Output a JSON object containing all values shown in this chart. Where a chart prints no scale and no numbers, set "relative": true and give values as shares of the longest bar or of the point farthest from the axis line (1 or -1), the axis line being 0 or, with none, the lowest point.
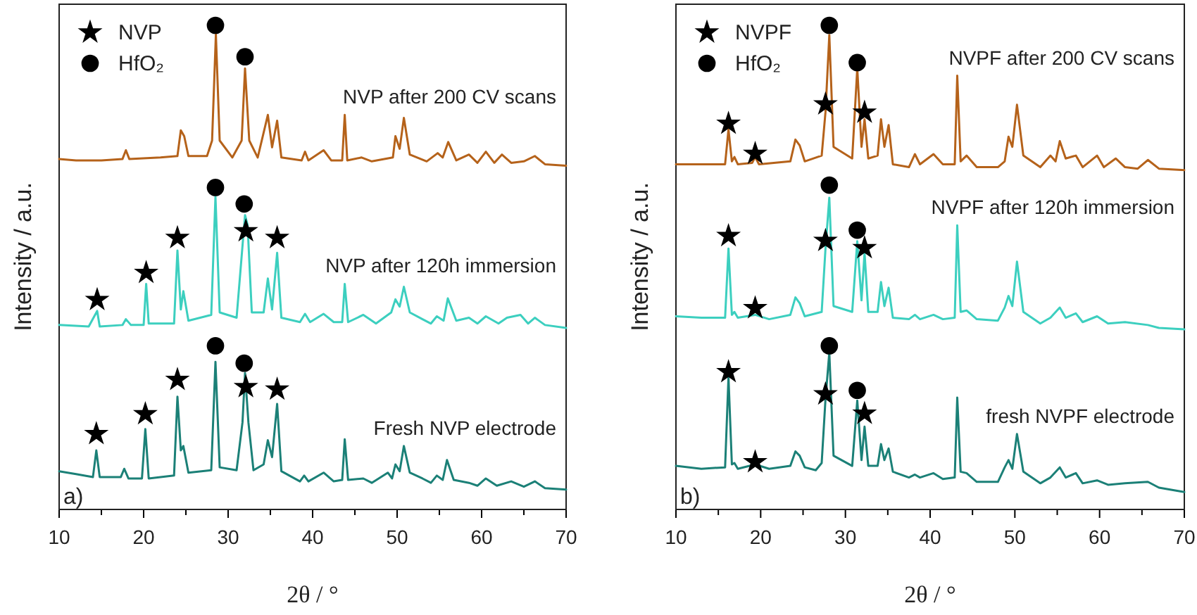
{
  "chart_data": [
    {
      "type": "line",
      "relative": true,
      "xlim": [
        10,
        70
      ],
      "xticks": [
        10,
        {
          "value": 15,
          "label": null
        },
        20,
        {
          "value": 25,
          "label": null
        },
        30,
        {
          "value": 35,
          "label": null
        },
        40,
        {
          "value": 45,
          "label": null
        },
        50,
        {
          "value": 55,
          "label": null
        },
        60,
        {
          "value": 65,
          "label": null
        },
        70
      ],
      "xlabel": "2θ / °",
      "ylabel": "Intensity / a.u.",
      "legend": "top left",
      "annotations": [
        "a)"
      ],
      "series": [
        {
          "name": "NVP after 200 CV scans",
          "color": "#b5621a",
          "x": [
            10,
            12,
            15,
            17.5,
            17.9,
            18.3,
            22,
            24.0,
            24.4,
            24.8,
            25.3,
            27.5,
            28.1,
            28.55,
            29.0,
            30.5,
            31.6,
            32.0,
            32.5,
            33.5,
            34.7,
            35.2,
            35.8,
            36.3,
            38.7,
            39.1,
            39.5,
            41.3,
            42.2,
            43.5,
            43.8,
            44.1,
            45.8,
            47,
            49.5,
            49.8,
            50.3,
            50.8,
            51.5,
            53.5,
            54.8,
            55.4,
            56.05,
            57,
            58.5,
            59.5,
            60.5,
            61.5,
            62.4,
            63.5,
            65,
            66.3,
            67.5,
            70
          ],
          "values": [
            0.724,
            0.721,
            0.721,
            0.724,
            0.742,
            0.724,
            0.727,
            0.73,
            0.783,
            0.771,
            0.73,
            0.73,
            0.762,
            0.981,
            0.762,
            0.727,
            0.762,
            0.911,
            0.762,
            0.727,
            0.815,
            0.748,
            0.803,
            0.727,
            0.721,
            0.739,
            0.721,
            0.742,
            0.721,
            0.721,
            0.815,
            0.721,
            0.727,
            0.719,
            0.727,
            0.771,
            0.745,
            0.809,
            0.733,
            0.719,
            0.736,
            0.727,
            0.759,
            0.721,
            0.733,
            0.716,
            0.739,
            0.716,
            0.733,
            0.716,
            0.719,
            0.73,
            0.713,
            0.71
          ]
        },
        {
          "name": "NVP after 120h immersion",
          "color": "#3ccfbf",
          "x": [
            10,
            13.5,
            14.5,
            14.8,
            17.5,
            17.9,
            18.5,
            20.0,
            20.3,
            20.6,
            23.6,
            24.0,
            24.4,
            24.7,
            25.3,
            28.0,
            28.5,
            29.0,
            31.0,
            32.0,
            32.3,
            32.8,
            34.2,
            34.7,
            35.2,
            35.8,
            36.3,
            38.5,
            39.1,
            39.7,
            41.3,
            42.5,
            43.5,
            43.8,
            44.2,
            46.0,
            47.5,
            49.3,
            49.8,
            50.3,
            50.8,
            51.5,
            53.0,
            54.0,
            54.7,
            55.5,
            56.0,
            57,
            58.5,
            59.5,
            60.5,
            62,
            63,
            64.6,
            65.5,
            66.3,
            67.5,
            70
          ],
          "values": [
            0.381,
            0.378,
            0.41,
            0.378,
            0.381,
            0.393,
            0.381,
            0.381,
            0.466,
            0.384,
            0.384,
            0.535,
            0.413,
            0.451,
            0.39,
            0.402,
            0.646,
            0.407,
            0.396,
            0.608,
            0.588,
            0.407,
            0.407,
            0.477,
            0.413,
            0.53,
            0.396,
            0.387,
            0.404,
            0.387,
            0.404,
            0.387,
            0.387,
            0.466,
            0.387,
            0.402,
            0.384,
            0.407,
            0.434,
            0.419,
            0.46,
            0.407,
            0.393,
            0.384,
            0.399,
            0.39,
            0.436,
            0.39,
            0.396,
            0.384,
            0.399,
            0.384,
            0.396,
            0.402,
            0.384,
            0.396,
            0.381,
            0.375
          ]
        },
        {
          "name": "Fresh NVP electrode",
          "color": "#1b8077",
          "x": [
            10,
            12,
            14.0,
            14.4,
            14.8,
            17.3,
            17.7,
            18.2,
            19.8,
            20.2,
            20.6,
            23.6,
            24.0,
            24.4,
            24.7,
            25.3,
            28.0,
            28.5,
            29.0,
            31.0,
            31.7,
            32.0,
            32.4,
            33.0,
            34.2,
            34.7,
            35.2,
            35.8,
            36.3,
            38.5,
            39.0,
            39.5,
            41.3,
            42.5,
            43.5,
            43.8,
            44.2,
            46.0,
            47,
            48.9,
            49.4,
            49.8,
            50.3,
            50.8,
            51.5,
            53.0,
            54.0,
            54.7,
            55.4,
            55.9,
            56.7,
            58.5,
            59.5,
            60.5,
            61.8,
            63.5,
            65,
            66.3,
            67.5,
            70
          ],
          "values": [
            0.079,
            0.073,
            0.067,
            0.122,
            0.067,
            0.067,
            0.084,
            0.064,
            0.064,
            0.166,
            0.064,
            0.07,
            0.233,
            0.122,
            0.131,
            0.076,
            0.081,
            0.305,
            0.087,
            0.081,
            0.18,
            0.282,
            0.18,
            0.081,
            0.093,
            0.143,
            0.108,
            0.218,
            0.079,
            0.058,
            0.07,
            0.058,
            0.076,
            0.058,
            0.061,
            0.145,
            0.061,
            0.064,
            0.055,
            0.076,
            0.064,
            0.093,
            0.079,
            0.131,
            0.076,
            0.064,
            0.055,
            0.07,
            0.061,
            0.102,
            0.061,
            0.055,
            0.049,
            0.064,
            0.049,
            0.058,
            0.047,
            0.058,
            0.044,
            0.041
          ]
        },
        {
          "name": "NVP",
          "type": "scatter",
          "marker": "star",
          "color": "#000000",
          "x": [
            14.5,
            20.3,
            24.0,
            32.1,
            35.8,
            14.4,
            20.2,
            24.0,
            32.1,
            35.8
          ],
          "values": [
            0.433,
            0.489,
            0.561,
            0.575,
            0.561,
            0.156,
            0.197,
            0.268,
            0.253,
            0.248
          ]
        },
        {
          "name": "HfO₂",
          "type": "scatter",
          "marker": "circle",
          "color": "#000000",
          "x": [
            28.5,
            32.0,
            28.5,
            31.9,
            28.5,
            31.9
          ],
          "values": [
            1.0,
            0.935,
            0.665,
            0.631,
            0.338,
            0.302
          ]
        }
      ]
    },
    {
      "type": "line",
      "relative": true,
      "xlim": [
        10,
        70
      ],
      "xticks": [
        10,
        {
          "value": 15,
          "label": null
        },
        20,
        {
          "value": 25,
          "label": null
        },
        30,
        {
          "value": 35,
          "label": null
        },
        40,
        {
          "value": 45,
          "label": null
        },
        50,
        {
          "value": 55,
          "label": null
        },
        60,
        {
          "value": 65,
          "label": null
        },
        70
      ],
      "xlabel": "2θ / °",
      "ylabel": "Intensity / a.u.",
      "legend": "top left",
      "annotations": [
        "b)"
      ],
      "series": [
        {
          "name": "NVPF after 200 CV scans",
          "color": "#b5621a",
          "x": [
            10,
            13,
            15.8,
            16.2,
            16.6,
            16.9,
            17.3,
            19.0,
            19.35,
            19.8,
            23.5,
            24.1,
            24.6,
            25.2,
            27.2,
            27.65,
            28.1,
            28.6,
            30.8,
            31.4,
            31.9,
            32.26,
            32.7,
            33.8,
            34.2,
            34.6,
            35.1,
            35.6,
            37.5,
            38.2,
            38.8,
            40.4,
            41.5,
            42.9,
            43.2,
            43.6,
            44.3,
            45.5,
            48,
            48.8,
            49.25,
            49.7,
            50.25,
            51,
            53,
            54.2,
            54.8,
            55.3,
            56,
            57.2,
            58,
            59.7,
            60.5,
            61.9,
            63,
            64.5,
            65.7,
            67,
            70
          ],
          "values": [
            0.713,
            0.713,
            0.713,
            0.785,
            0.719,
            0.728,
            0.713,
            0.716,
            0.728,
            0.713,
            0.719,
            0.764,
            0.752,
            0.719,
            0.731,
            0.821,
            0.98,
            0.749,
            0.725,
            0.911,
            0.749,
            0.806,
            0.725,
            0.731,
            0.806,
            0.749,
            0.794,
            0.713,
            0.707,
            0.734,
            0.713,
            0.734,
            0.713,
            0.713,
            0.896,
            0.719,
            0.731,
            0.707,
            0.707,
            0.719,
            0.77,
            0.749,
            0.836,
            0.731,
            0.707,
            0.731,
            0.719,
            0.761,
            0.725,
            0.731,
            0.707,
            0.731,
            0.707,
            0.725,
            0.707,
            0.704,
            0.722,
            0.704,
            0.701
          ]
        },
        {
          "name": "NVPF after 120h immersion",
          "color": "#3ccfbf",
          "x": [
            10,
            13,
            15.8,
            16.2,
            16.6,
            16.9,
            17.3,
            19.35,
            21,
            23.5,
            24.1,
            24.6,
            25.2,
            27.2,
            27.65,
            28.1,
            28.6,
            30.8,
            31.4,
            31.9,
            32.26,
            32.7,
            33.8,
            34.2,
            34.6,
            35.1,
            35.6,
            37.5,
            38.2,
            38.8,
            40.4,
            41.5,
            42.9,
            43.2,
            43.6,
            44.3,
            45.5,
            48,
            48.8,
            49.25,
            49.7,
            50.25,
            51,
            53,
            54.2,
            55.3,
            56,
            57.2,
            58,
            59.7,
            61,
            63,
            65.7,
            67,
            70
          ],
          "values": [
            0.399,
            0.396,
            0.396,
            0.539,
            0.402,
            0.408,
            0.396,
            0.402,
            0.393,
            0.402,
            0.438,
            0.426,
            0.399,
            0.408,
            0.539,
            0.644,
            0.42,
            0.408,
            0.554,
            0.432,
            0.53,
            0.408,
            0.408,
            0.47,
            0.42,
            0.458,
            0.396,
            0.393,
            0.402,
            0.393,
            0.402,
            0.393,
            0.396,
            0.587,
            0.408,
            0.411,
            0.393,
            0.39,
            0.417,
            0.441,
            0.42,
            0.512,
            0.408,
            0.384,
            0.396,
            0.417,
            0.396,
            0.405,
            0.387,
            0.399,
            0.384,
            0.387,
            0.381,
            0.375,
            0.372
          ]
        },
        {
          "name": "fresh NVPF electrode",
          "color": "#1b8077",
          "x": [
            10,
            13,
            15.8,
            16.2,
            16.6,
            16.9,
            17.3,
            19.35,
            21,
            23.5,
            24.1,
            24.6,
            25.2,
            26.5,
            27.2,
            27.65,
            28.1,
            28.6,
            30.8,
            31.4,
            31.9,
            32.26,
            32.7,
            33.8,
            34.2,
            34.6,
            35.1,
            35.6,
            37.5,
            38.2,
            38.8,
            40.4,
            41.5,
            42.9,
            43.2,
            43.6,
            44.3,
            45.5,
            48,
            48.8,
            49.25,
            49.7,
            50.25,
            51,
            53,
            54.2,
            55.3,
            56,
            57.2,
            58,
            59.7,
            61,
            63,
            65.7,
            67,
            70
          ],
          "values": [
            0.09,
            0.084,
            0.087,
            0.273,
            0.093,
            0.096,
            0.084,
            0.093,
            0.084,
            0.09,
            0.12,
            0.111,
            0.087,
            0.081,
            0.096,
            0.228,
            0.324,
            0.111,
            0.09,
            0.225,
            0.102,
            0.171,
            0.09,
            0.09,
            0.135,
            0.102,
            0.126,
            0.078,
            0.066,
            0.072,
            0.066,
            0.075,
            0.063,
            0.066,
            0.231,
            0.078,
            0.075,
            0.057,
            0.057,
            0.087,
            0.102,
            0.084,
            0.156,
            0.078,
            0.054,
            0.066,
            0.087,
            0.066,
            0.075,
            0.054,
            0.06,
            0.051,
            0.054,
            0.057,
            0.045,
            0.036
          ]
        },
        {
          "name": "NVPF",
          "type": "scatter",
          "marker": "star",
          "color": "#000000",
          "x": [
            16.2,
            19.35,
            27.65,
            32.26,
            16.2,
            19.35,
            27.65,
            32.26,
            16.2,
            19.35,
            27.65,
            32.26
          ],
          "values": [
            0.797,
            0.735,
            0.837,
            0.82,
            0.565,
            0.416,
            0.555,
            0.54,
            0.284,
            0.098,
            0.238,
            0.198
          ]
        },
        {
          "name": "HfO₂",
          "type": "scatter",
          "marker": "circle",
          "color": "#000000",
          "x": [
            28.1,
            31.4,
            28.1,
            31.4,
            28.1,
            31.4
          ],
          "values": [
            1.0,
            0.923,
            0.67,
            0.577,
            0.338,
            0.246
          ]
        }
      ]
    }
  ]
}
